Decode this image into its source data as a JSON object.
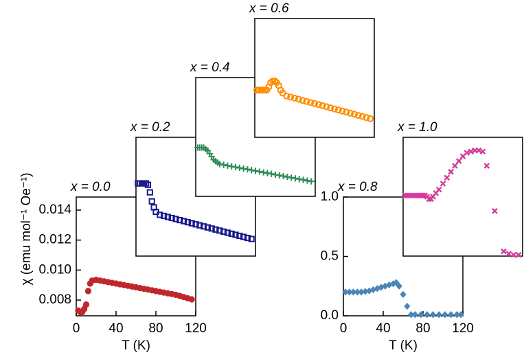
{
  "chart_data": [
    {
      "type": "scatter",
      "title": "x = 0.0",
      "marker": "circle-filled",
      "color": "#c0272d",
      "xlabel": "T (K)",
      "ylabel": "χ (emu mol⁻¹ Oe⁻¹)",
      "xlim": [
        0,
        120
      ],
      "ylim": [
        0.00695,
        0.01487
      ],
      "xticks": [
        0,
        40,
        80,
        120
      ],
      "yticks": [
        0.008,
        {
          "value": 0.01,
          "label": "0.010"
        },
        0.012,
        0.014
      ],
      "x": [
        2,
        4,
        6,
        8,
        10,
        12,
        14,
        16,
        20,
        24,
        28,
        32,
        36,
        40,
        44,
        48,
        52,
        56,
        60,
        64,
        68,
        72,
        76,
        80,
        84,
        88,
        92,
        96,
        100,
        104,
        108,
        112,
        116
      ],
      "values": [
        0.0073,
        0.0072,
        0.0072,
        0.0074,
        0.0077,
        0.0086,
        0.0091,
        0.0093,
        0.00935,
        0.0093,
        0.00925,
        0.0092,
        0.00915,
        0.0091,
        0.00905,
        0.009,
        0.00895,
        0.0089,
        0.00885,
        0.0088,
        0.00875,
        0.0087,
        0.00865,
        0.0086,
        0.00855,
        0.0085,
        0.00845,
        0.0084,
        0.00835,
        0.00828,
        0.0082,
        0.00812,
        0.00805
      ]
    },
    {
      "type": "scatter",
      "title": "x = 0.2",
      "marker": "square-open",
      "color": "#1a1a8c",
      "xlim": [
        0,
        120
      ],
      "ylim": [
        0.00695,
        0.01487
      ],
      "x": [
        2,
        4,
        6,
        8,
        10,
        12,
        14,
        16,
        18,
        20,
        24,
        28,
        32,
        36,
        40,
        44,
        48,
        52,
        56,
        60,
        64,
        68,
        72,
        76,
        80,
        84,
        88,
        92,
        96,
        100,
        104,
        108,
        112,
        116
      ],
      "values": [
        0.0118,
        0.0118,
        0.0118,
        0.0118,
        0.0118,
        0.0117,
        0.0112,
        0.0106,
        0.0102,
        0.0099,
        0.0097,
        0.00963,
        0.00956,
        0.00949,
        0.00942,
        0.00935,
        0.00928,
        0.00921,
        0.00914,
        0.00907,
        0.009,
        0.00893,
        0.00886,
        0.00879,
        0.00872,
        0.00865,
        0.00858,
        0.00851,
        0.00844,
        0.00837,
        0.0083,
        0.00823,
        0.00816,
        0.00809
      ]
    },
    {
      "type": "scatter",
      "title": "x = 0.4",
      "marker": "plus",
      "color": "#2e8b57",
      "xlim": [
        0,
        120
      ],
      "ylim": [
        0.00695,
        0.01487
      ],
      "x": [
        2,
        4,
        6,
        8,
        10,
        12,
        14,
        16,
        18,
        20,
        22,
        24,
        28,
        32,
        36,
        40,
        44,
        48,
        52,
        56,
        60,
        64,
        68,
        72,
        76,
        80,
        84,
        88,
        92,
        96,
        100,
        104,
        108,
        112,
        116
      ],
      "values": [
        0.0102,
        0.0102,
        0.0102,
        0.0102,
        0.0101,
        0.01,
        0.0098,
        0.0096,
        0.0094,
        0.0093,
        0.0092,
        0.0091,
        0.00905,
        0.009,
        0.00895,
        0.0089,
        0.00885,
        0.0088,
        0.00875,
        0.0087,
        0.00865,
        0.0086,
        0.00855,
        0.0085,
        0.00845,
        0.0084,
        0.00835,
        0.0083,
        0.00825,
        0.0082,
        0.00815,
        0.0081,
        0.00805,
        0.008,
        0.00795
      ]
    },
    {
      "type": "scatter",
      "title": "x = 0.6",
      "marker": "circle-open",
      "color": "#ff8c00",
      "xlim": [
        0,
        120
      ],
      "ylim": [
        0.00695,
        0.01487
      ],
      "x": [
        2,
        4,
        6,
        8,
        10,
        12,
        14,
        16,
        18,
        20,
        22,
        24,
        26,
        28,
        32,
        36,
        40,
        44,
        48,
        52,
        56,
        60,
        64,
        68,
        72,
        76,
        80,
        84,
        88,
        92,
        96,
        100,
        104,
        108,
        112,
        116
      ],
      "values": [
        0.0101,
        0.0101,
        0.0101,
        0.0101,
        0.0101,
        0.0101,
        0.0103,
        0.0106,
        0.0107,
        0.0107,
        0.0106,
        0.0104,
        0.0101,
        0.0099,
        0.0097,
        0.00963,
        0.00956,
        0.00949,
        0.00941,
        0.00934,
        0.00927,
        0.0092,
        0.00913,
        0.00906,
        0.00899,
        0.00891,
        0.00884,
        0.00877,
        0.0087,
        0.00863,
        0.00856,
        0.00849,
        0.00841,
        0.00834,
        0.00827,
        0.0082
      ]
    },
    {
      "type": "scatter",
      "title": "x = 0.8",
      "marker": "diamond",
      "color": "#4a86b8",
      "xlabel": "T (K)",
      "xlim": [
        0,
        120
      ],
      "ylim": [
        0,
        1
      ],
      "xticks": [
        0,
        40,
        80,
        120
      ],
      "yticks": [
        {
          "value": 0,
          "label": "0.0"
        },
        0.5,
        {
          "value": 1,
          "label": "1.0"
        }
      ],
      "x": [
        2,
        6,
        10,
        14,
        18,
        22,
        26,
        30,
        34,
        38,
        42,
        46,
        50,
        53,
        56,
        60,
        64,
        68,
        72,
        78,
        84,
        90,
        96,
        102,
        108,
        114,
        118
      ],
      "values": [
        0.2,
        0.2,
        0.2,
        0.2,
        0.2,
        0.205,
        0.21,
        0.22,
        0.23,
        0.24,
        0.25,
        0.26,
        0.27,
        0.28,
        0.25,
        0.18,
        0.08,
        0.01,
        0.01,
        0.01,
        0.01,
        0.01,
        0.01,
        0.01,
        0.01,
        0.01,
        0.01
      ]
    },
    {
      "type": "scatter",
      "title": "x = 1.0",
      "marker": "cross",
      "color": "#d63a9e",
      "xlim": [
        0,
        120
      ],
      "ylim": [
        0,
        1
      ],
      "x": [
        2,
        4,
        6,
        8,
        10,
        12,
        14,
        16,
        18,
        20,
        22,
        24,
        26,
        28,
        30,
        33,
        36,
        40,
        44,
        48,
        52,
        56,
        60,
        64,
        68,
        72,
        76,
        80,
        84,
        92,
        101,
        106,
        111,
        116
      ],
      "values": [
        0.51,
        0.51,
        0.51,
        0.51,
        0.51,
        0.51,
        0.51,
        0.51,
        0.51,
        0.51,
        0.51,
        0.5,
        0.48,
        0.48,
        0.5,
        0.53,
        0.56,
        0.61,
        0.66,
        0.71,
        0.76,
        0.8,
        0.84,
        0.87,
        0.88,
        0.89,
        0.89,
        0.88,
        0.76,
        0.38,
        0.04,
        0.02,
        0.01,
        0.01
      ]
    }
  ]
}
